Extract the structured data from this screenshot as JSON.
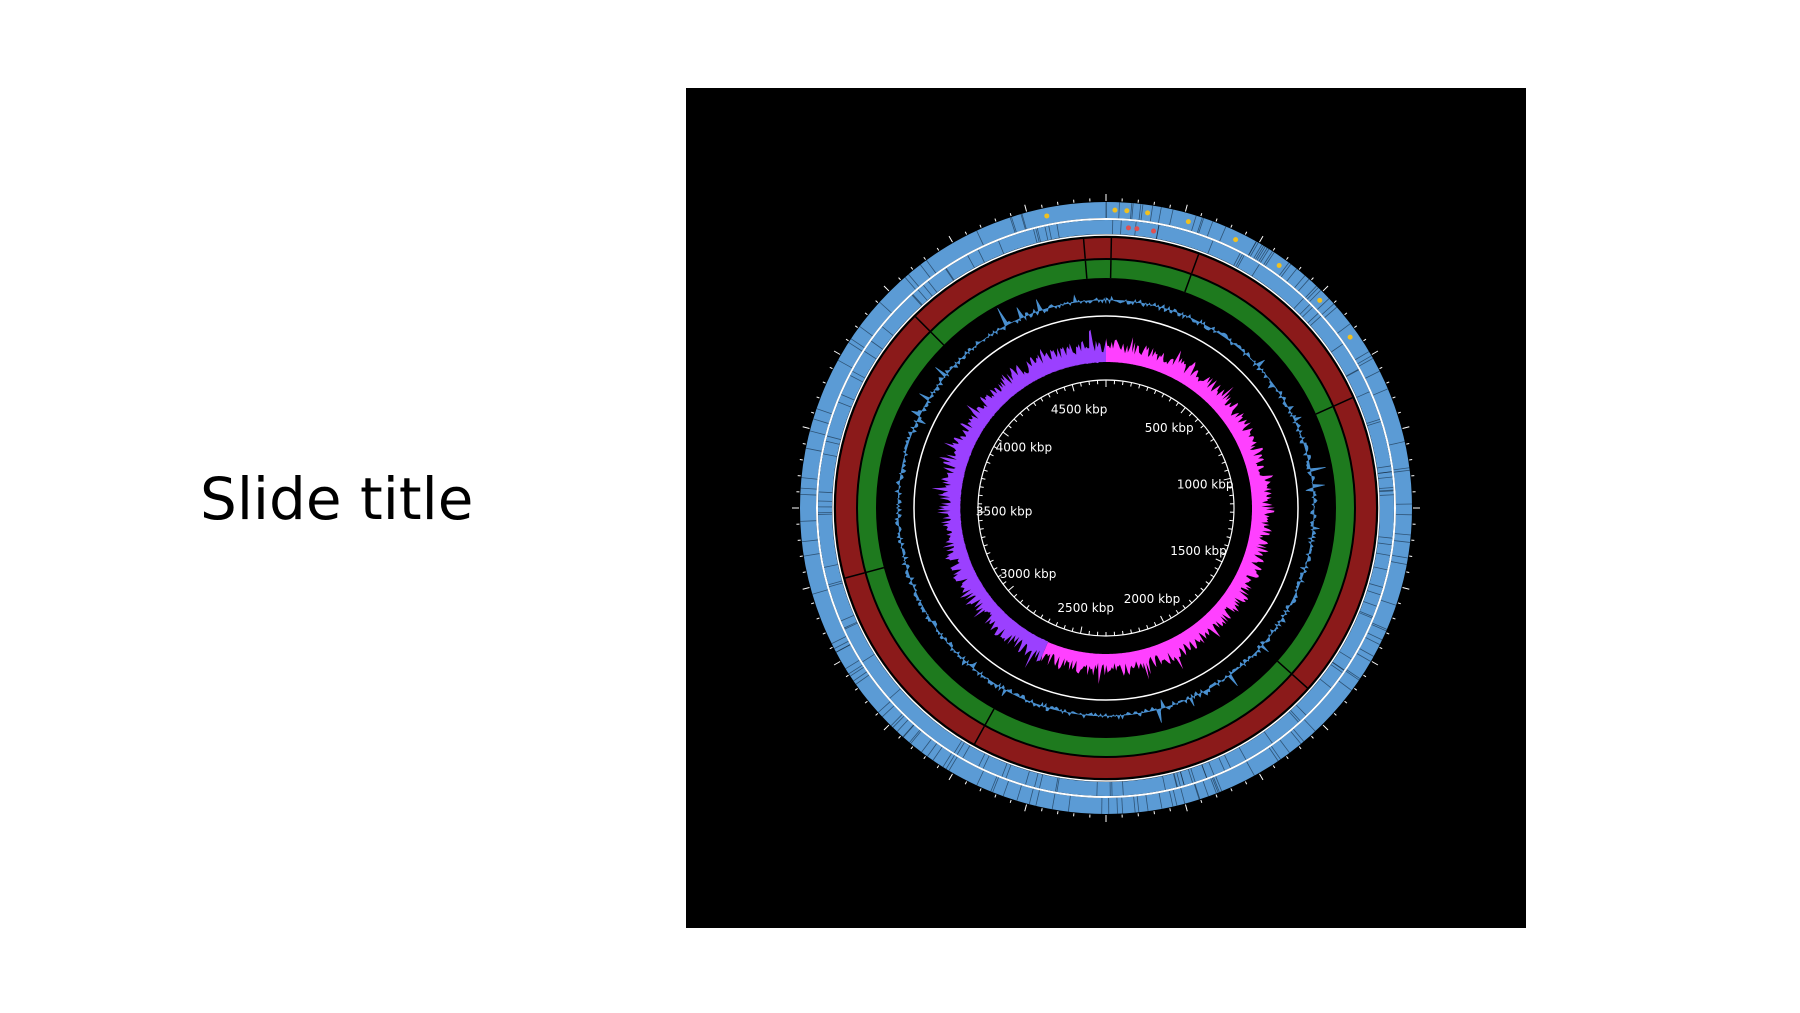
{
  "slide": {
    "title": "Slide title"
  },
  "genome_map": {
    "background": "#000000",
    "genome_length_kbp": 4700,
    "position_labels": [
      {
        "kbp": 500,
        "text": "500 kbp"
      },
      {
        "kbp": 1000,
        "text": "1000 kbp"
      },
      {
        "kbp": 1500,
        "text": "1500 kbp"
      },
      {
        "kbp": 2000,
        "text": "2000 kbp"
      },
      {
        "kbp": 2500,
        "text": "2500 kbp"
      },
      {
        "kbp": 3000,
        "text": "3000 kbp"
      },
      {
        "kbp": 3500,
        "text": "3500 kbp"
      },
      {
        "kbp": 4000,
        "text": "4000 kbp"
      },
      {
        "kbp": 4500,
        "text": "4500 kbp"
      }
    ],
    "tracks": [
      {
        "id": "cds-forward",
        "kind": "features",
        "color": "#5b9bd5"
      },
      {
        "id": "cds-reverse",
        "kind": "features",
        "color": "#5b9bd5"
      },
      {
        "id": "blast-hits-1",
        "kind": "ring",
        "color": "#8b1a1a"
      },
      {
        "id": "blast-hits-2",
        "kind": "ring",
        "color": "#1e7a1e"
      },
      {
        "id": "gc-content",
        "kind": "plot",
        "color": "#4a90d0"
      },
      {
        "id": "gc-skew",
        "kind": "plot",
        "positive_color": "#ff40ff",
        "negative_color": "#9b40ff"
      }
    ],
    "feature_marker_color": "#f0c020",
    "rna_marker_color": "#e05050"
  }
}
